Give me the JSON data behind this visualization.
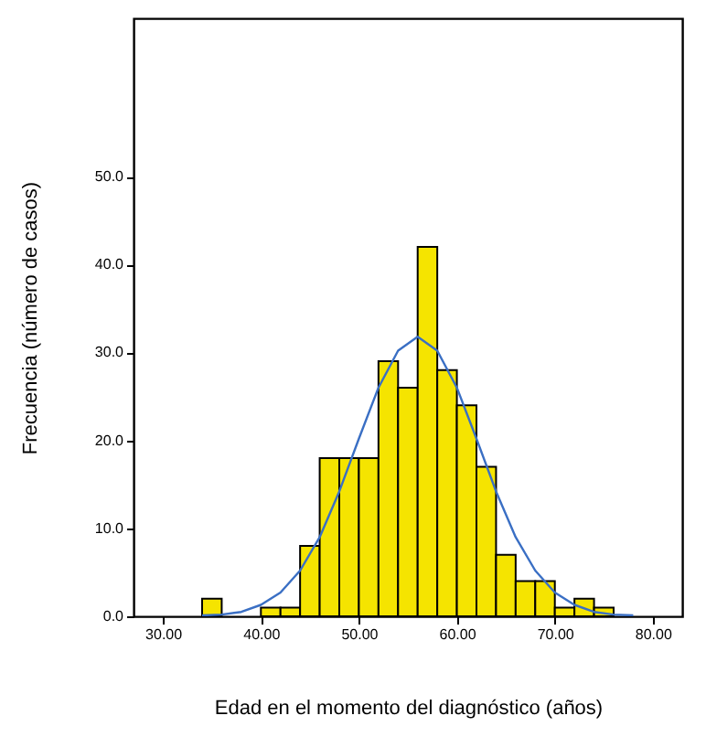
{
  "chart_data": {
    "type": "histogram",
    "xlabel": "Edad en el momento del diagnóstico (años)",
    "ylabel": "Frecuencia (número de casos)",
    "bins": [
      34,
      36,
      38,
      40,
      42,
      44,
      46,
      48,
      50,
      52,
      54,
      56,
      58,
      60,
      62,
      64,
      66,
      68,
      70,
      72,
      74,
      76
    ],
    "values": [
      2,
      0,
      0,
      1,
      1,
      8,
      18,
      18,
      18,
      29,
      26,
      42,
      28,
      24,
      17,
      7,
      4,
      4,
      1,
      2,
      1
    ],
    "color": "#f5e400",
    "series": [
      {
        "type": "line",
        "color": "#3a6fc4",
        "x": [
          34,
          36,
          38,
          40,
          42,
          44,
          46,
          48,
          50,
          52,
          54,
          56,
          58,
          60,
          62,
          64,
          66,
          68,
          70,
          72,
          74,
          76,
          78
        ],
        "values": [
          0.1,
          0.2,
          0.5,
          1.3,
          2.7,
          5.2,
          9.0,
          14.2,
          20.2,
          26.0,
          30.2,
          31.8,
          30.2,
          26.0,
          20.2,
          14.2,
          9.0,
          5.2,
          2.7,
          1.3,
          0.5,
          0.2,
          0.1
        ]
      }
    ],
    "xlim": [
      27,
      83
    ],
    "xticks": [
      {
        "value": 30,
        "label": "30.00"
      },
      {
        "value": 40,
        "label": "40.00"
      },
      {
        "value": 50,
        "label": "50.00"
      },
      {
        "value": 60,
        "label": "60.00"
      },
      {
        "value": 70,
        "label": "70.00"
      },
      {
        "value": 80,
        "label": "80.00"
      }
    ],
    "ylim": [
      0,
      68
    ],
    "yticks": [
      {
        "value": 0,
        "label": "0.0"
      },
      {
        "value": 10,
        "label": "10.0"
      },
      {
        "value": 20,
        "label": "20.0"
      },
      {
        "value": 30,
        "label": "30.0"
      },
      {
        "value": 40,
        "label": "40.0"
      },
      {
        "value": 50,
        "label": "50.0"
      }
    ]
  }
}
